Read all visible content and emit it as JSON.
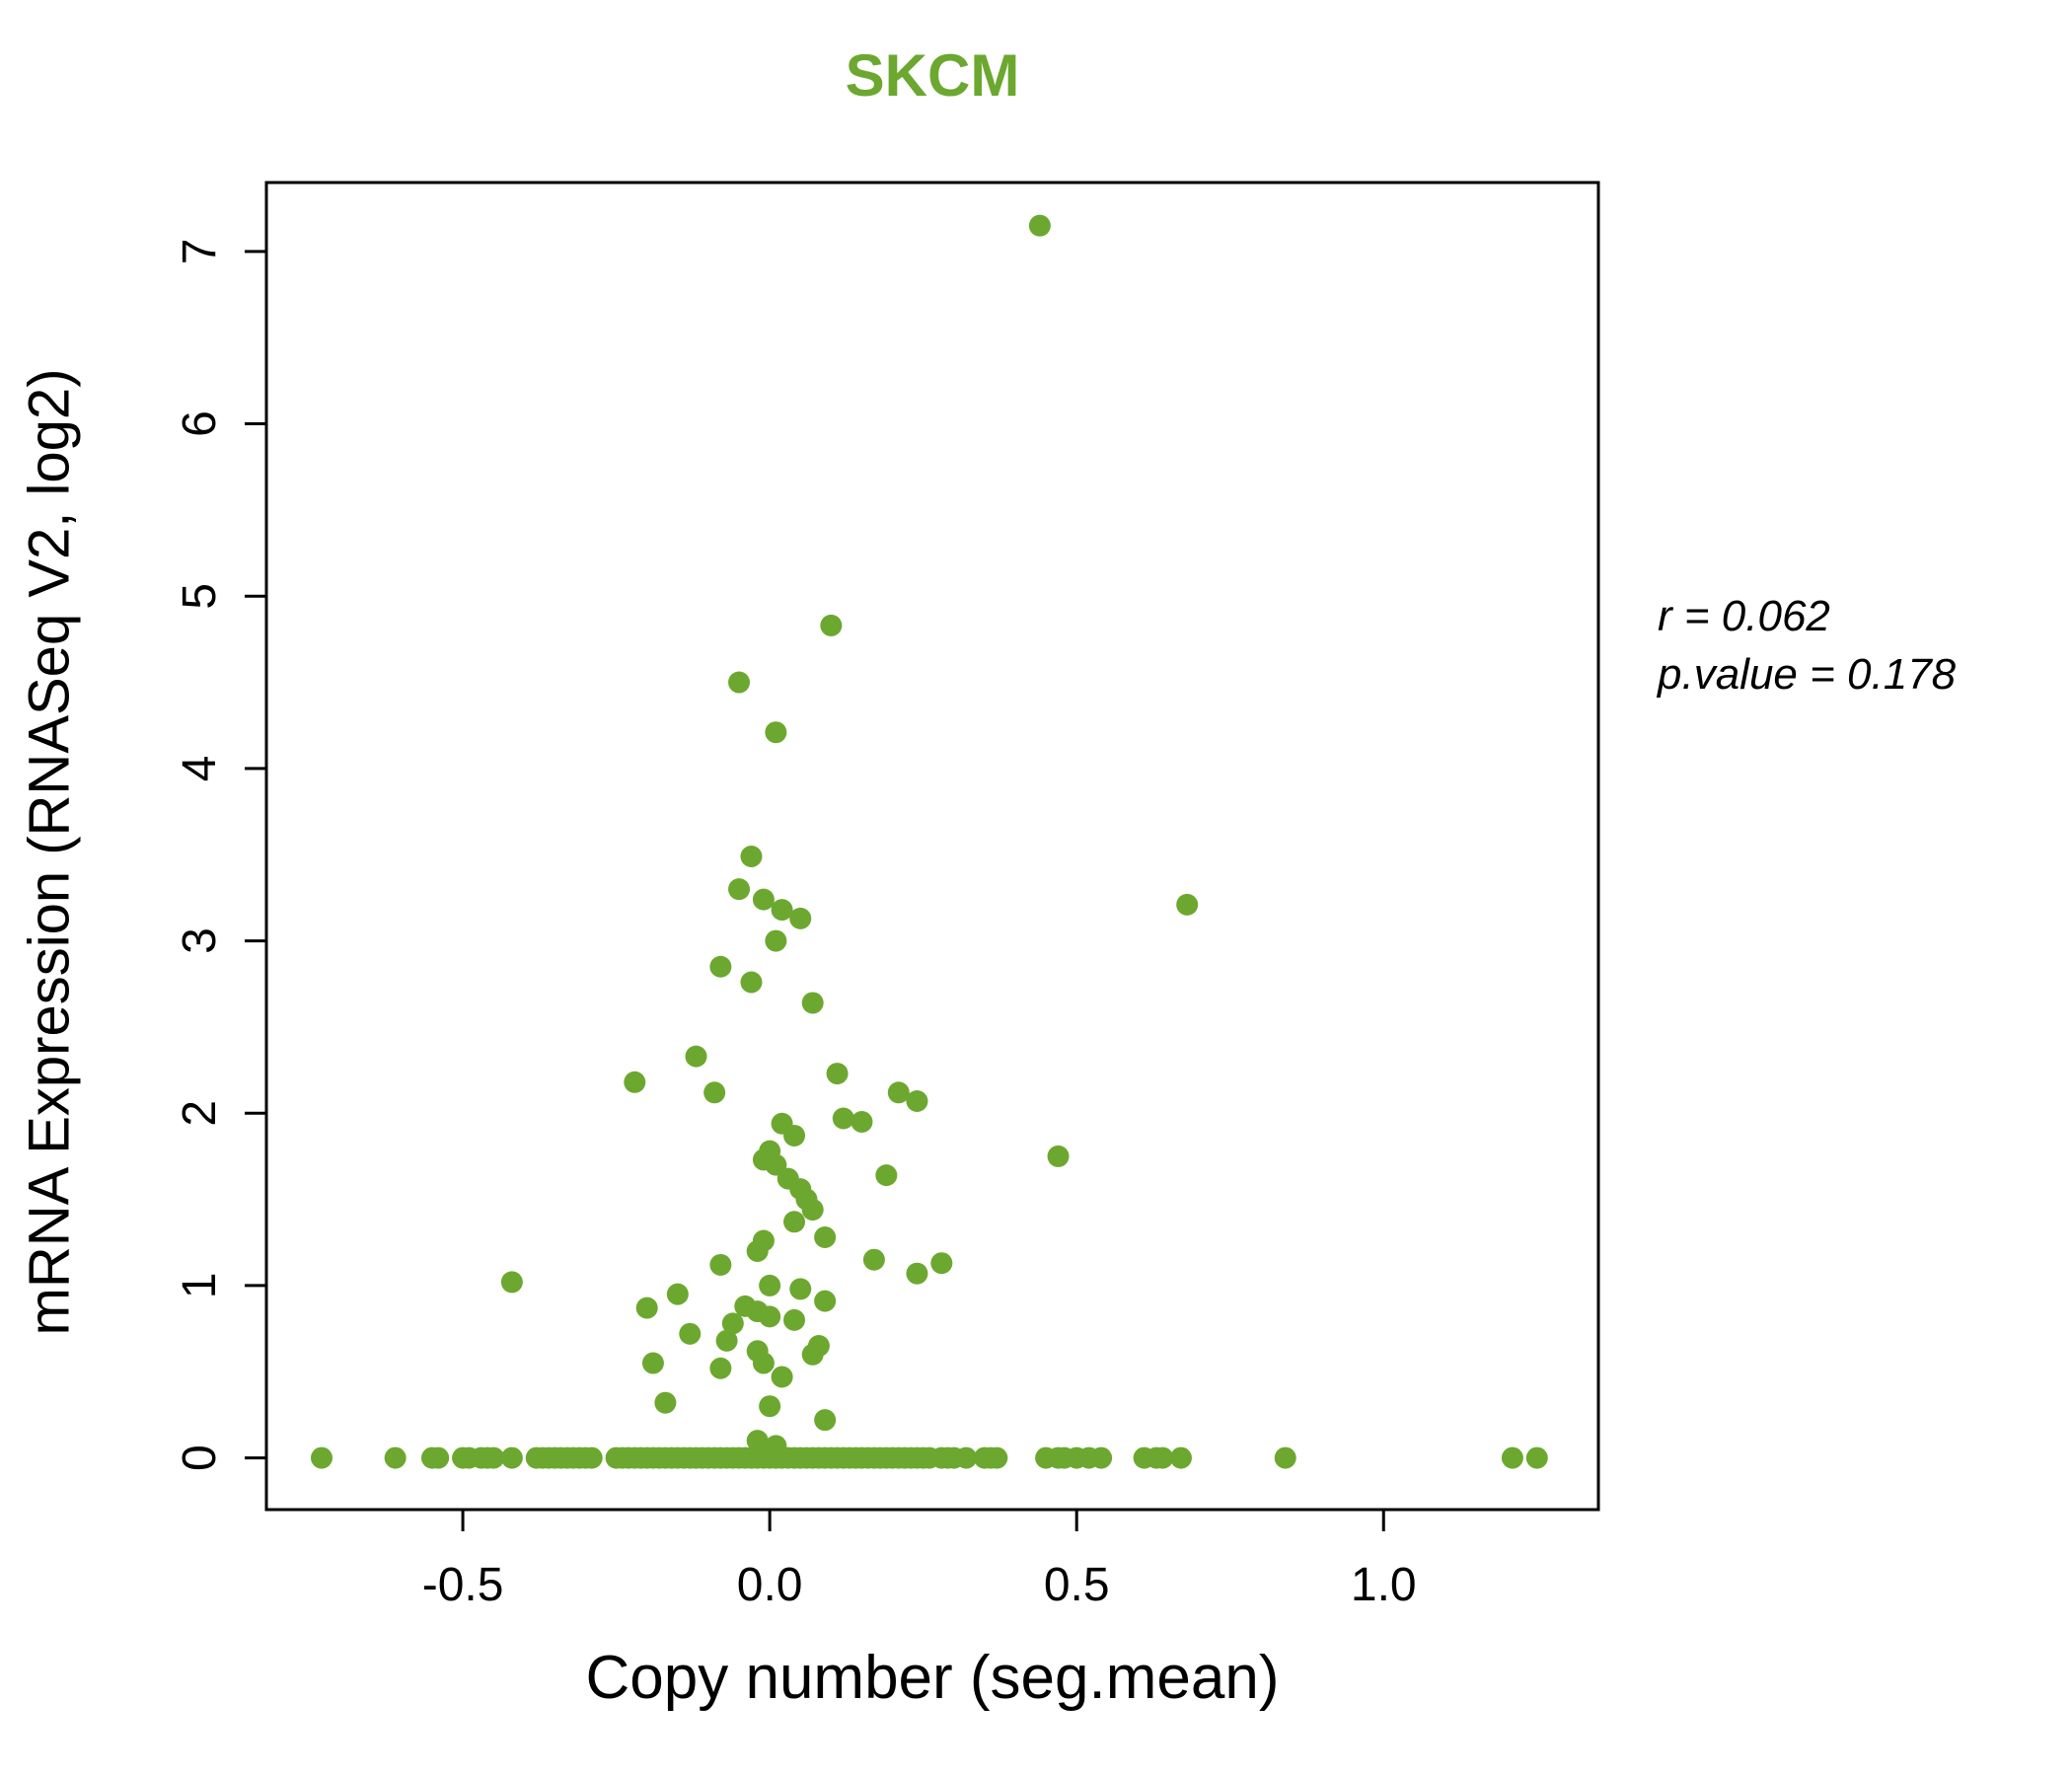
{
  "figure": {
    "background": "#ffffff"
  },
  "chart_data": {
    "type": "scatter",
    "title": "SKCM",
    "xlabel": "Copy number (seg.mean)",
    "ylabel": "mRNA Expression (RNASeq V2, log2)",
    "xlim": [
      -0.82,
      1.35
    ],
    "ylim": [
      -0.3,
      7.4
    ],
    "xticks": [
      -0.5,
      0.0,
      0.5,
      1.0
    ],
    "xtick_labels": [
      "-0.5",
      "0.0",
      "0.5",
      "1.0"
    ],
    "yticks": [
      0,
      1,
      2,
      3,
      4,
      5,
      6,
      7
    ],
    "ytick_labels": [
      "0",
      "1",
      "2",
      "3",
      "4",
      "5",
      "6",
      "7"
    ],
    "grid": false,
    "legend": "none",
    "point_color": "#6CA82F",
    "title_color": "#6CA82F",
    "axis_color": "#000000",
    "annotation": {
      "line1": "r = 0.062",
      "line2": "p.value = 0.178"
    },
    "points": [
      [
        0.44,
        7.15
      ],
      [
        0.1,
        4.83
      ],
      [
        -0.05,
        4.5
      ],
      [
        0.01,
        4.21
      ],
      [
        -0.03,
        3.49
      ],
      [
        -0.05,
        3.3
      ],
      [
        -0.01,
        3.24
      ],
      [
        0.02,
        3.18
      ],
      [
        0.68,
        3.21
      ],
      [
        0.05,
        3.13
      ],
      [
        0.01,
        3.0
      ],
      [
        -0.08,
        2.85
      ],
      [
        -0.03,
        2.76
      ],
      [
        0.07,
        2.64
      ],
      [
        -0.12,
        2.33
      ],
      [
        -0.22,
        2.18
      ],
      [
        -0.09,
        2.12
      ],
      [
        0.11,
        2.23
      ],
      [
        0.21,
        2.12
      ],
      [
        0.24,
        2.07
      ],
      [
        0.12,
        1.97
      ],
      [
        0.15,
        1.95
      ],
      [
        0.02,
        1.94
      ],
      [
        0.04,
        1.87
      ],
      [
        0.47,
        1.75
      ],
      [
        0.0,
        1.78
      ],
      [
        -0.01,
        1.73
      ],
      [
        0.01,
        1.7
      ],
      [
        0.19,
        1.64
      ],
      [
        0.03,
        1.62
      ],
      [
        0.05,
        1.56
      ],
      [
        0.06,
        1.5
      ],
      [
        0.07,
        1.44
      ],
      [
        0.04,
        1.37
      ],
      [
        0.09,
        1.28
      ],
      [
        -0.01,
        1.26
      ],
      [
        -0.02,
        1.2
      ],
      [
        0.17,
        1.15
      ],
      [
        0.28,
        1.13
      ],
      [
        0.24,
        1.07
      ],
      [
        -0.08,
        1.12
      ],
      [
        -0.42,
        1.02
      ],
      [
        0.0,
        1.0
      ],
      [
        0.05,
        0.98
      ],
      [
        -0.15,
        0.95
      ],
      [
        0.09,
        0.91
      ],
      [
        -0.04,
        0.88
      ],
      [
        -0.2,
        0.87
      ],
      [
        -0.02,
        0.85
      ],
      [
        0.0,
        0.82
      ],
      [
        0.04,
        0.8
      ],
      [
        -0.06,
        0.78
      ],
      [
        -0.13,
        0.72
      ],
      [
        -0.07,
        0.68
      ],
      [
        0.08,
        0.65
      ],
      [
        -0.02,
        0.62
      ],
      [
        0.07,
        0.6
      ],
      [
        -0.01,
        0.55
      ],
      [
        -0.19,
        0.55
      ],
      [
        -0.08,
        0.52
      ],
      [
        0.02,
        0.47
      ],
      [
        -0.17,
        0.32
      ],
      [
        0.0,
        0.3
      ],
      [
        0.09,
        0.22
      ],
      [
        -0.02,
        0.1
      ],
      [
        0.01,
        0.07
      ],
      [
        -0.73,
        0
      ],
      [
        -0.61,
        0
      ],
      [
        -0.55,
        0
      ],
      [
        -0.54,
        0
      ],
      [
        -0.5,
        0
      ],
      [
        -0.49,
        0
      ],
      [
        -0.47,
        0
      ],
      [
        -0.46,
        0
      ],
      [
        -0.45,
        0
      ],
      [
        -0.42,
        0
      ],
      [
        -0.38,
        0
      ],
      [
        -0.37,
        0
      ],
      [
        -0.36,
        0
      ],
      [
        -0.35,
        0
      ],
      [
        -0.34,
        0
      ],
      [
        -0.33,
        0
      ],
      [
        -0.32,
        0
      ],
      [
        -0.31,
        0
      ],
      [
        -0.3,
        0
      ],
      [
        -0.29,
        0
      ],
      [
        -0.25,
        0
      ],
      [
        -0.24,
        0
      ],
      [
        -0.23,
        0
      ],
      [
        -0.22,
        0
      ],
      [
        -0.21,
        0
      ],
      [
        -0.2,
        0
      ],
      [
        -0.19,
        0
      ],
      [
        -0.18,
        0
      ],
      [
        -0.17,
        0
      ],
      [
        -0.16,
        0
      ],
      [
        -0.15,
        0
      ],
      [
        -0.14,
        0
      ],
      [
        -0.13,
        0
      ],
      [
        -0.12,
        0
      ],
      [
        -0.11,
        0
      ],
      [
        -0.1,
        0
      ],
      [
        -0.09,
        0
      ],
      [
        -0.08,
        0
      ],
      [
        -0.07,
        0
      ],
      [
        -0.06,
        0
      ],
      [
        -0.05,
        0
      ],
      [
        -0.04,
        0
      ],
      [
        -0.03,
        0
      ],
      [
        -0.02,
        0
      ],
      [
        -0.01,
        0
      ],
      [
        0.0,
        0
      ],
      [
        0.01,
        0
      ],
      [
        0.02,
        0
      ],
      [
        0.03,
        0
      ],
      [
        0.04,
        0
      ],
      [
        0.05,
        0
      ],
      [
        0.06,
        0
      ],
      [
        0.07,
        0
      ],
      [
        0.08,
        0
      ],
      [
        0.09,
        0
      ],
      [
        0.1,
        0
      ],
      [
        0.11,
        0
      ],
      [
        0.12,
        0
      ],
      [
        0.13,
        0
      ],
      [
        0.14,
        0
      ],
      [
        0.15,
        0
      ],
      [
        0.16,
        0
      ],
      [
        0.17,
        0
      ],
      [
        0.18,
        0
      ],
      [
        0.19,
        0
      ],
      [
        0.2,
        0
      ],
      [
        0.21,
        0
      ],
      [
        0.22,
        0
      ],
      [
        0.23,
        0
      ],
      [
        0.24,
        0
      ],
      [
        0.25,
        0
      ],
      [
        0.26,
        0
      ],
      [
        0.28,
        0
      ],
      [
        0.29,
        0
      ],
      [
        0.3,
        0
      ],
      [
        0.32,
        0
      ],
      [
        0.35,
        0
      ],
      [
        0.36,
        0
      ],
      [
        0.37,
        0
      ],
      [
        0.45,
        0
      ],
      [
        0.47,
        0
      ],
      [
        0.48,
        0
      ],
      [
        0.5,
        0
      ],
      [
        0.52,
        0
      ],
      [
        0.54,
        0
      ],
      [
        0.61,
        0
      ],
      [
        0.63,
        0
      ],
      [
        0.64,
        0
      ],
      [
        0.67,
        0
      ],
      [
        0.84,
        0
      ],
      [
        1.21,
        0
      ],
      [
        1.25,
        0
      ]
    ]
  }
}
